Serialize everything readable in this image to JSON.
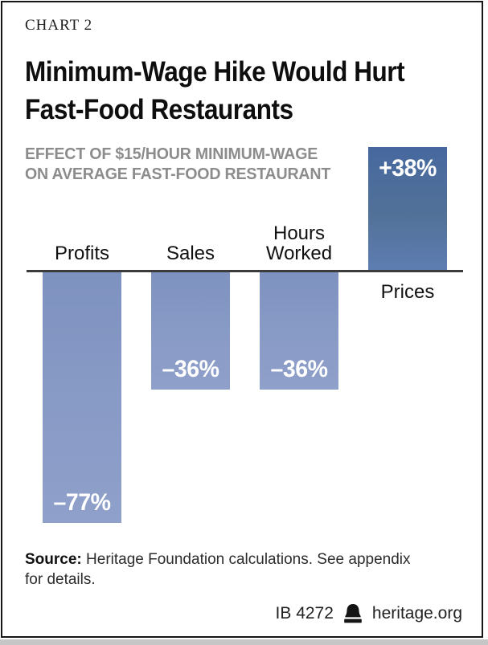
{
  "kicker": "CHART 2",
  "title": {
    "line1": "Minimum-Wage Hike Would Hurt",
    "line2": "Fast-Food Restaurants"
  },
  "subtitle": {
    "line1": "EFFECT OF $15/HOUR MINIMUM-WAGE",
    "line2": "ON AVERAGE FAST-FOOD RESTAURANT"
  },
  "chart_data": {
    "type": "bar",
    "title": "Minimum-Wage Hike Would Hurt Fast-Food Restaurants",
    "subtitle": "Effect of $15/hour minimum-wage on average fast-food restaurant",
    "categories": [
      "Profits",
      "Sales",
      "Hours Worked",
      "Prices"
    ],
    "values": [
      -77,
      -36,
      -36,
      38
    ],
    "value_labels": [
      "–77%",
      "–36%",
      "–36%",
      "+38%"
    ],
    "unit": "percent",
    "ylim": [
      -80,
      40
    ],
    "gridlines": false,
    "zero_baseline": true,
    "legend": "none",
    "colors": {
      "negative_bar": "#8296C2",
      "positive_bar": "#4A6BA4",
      "axis_line": "#3B3B3B",
      "value_text": "#FFFFFF",
      "subtitle_text": "#8C8C8C"
    }
  },
  "source": {
    "label": "Source:",
    "text": " Heritage Foundation calculations. See appendix for details."
  },
  "footer": {
    "report_id": "IB 4272",
    "brand": "heritage.org",
    "logo_icon": "liberty-bell-icon"
  }
}
